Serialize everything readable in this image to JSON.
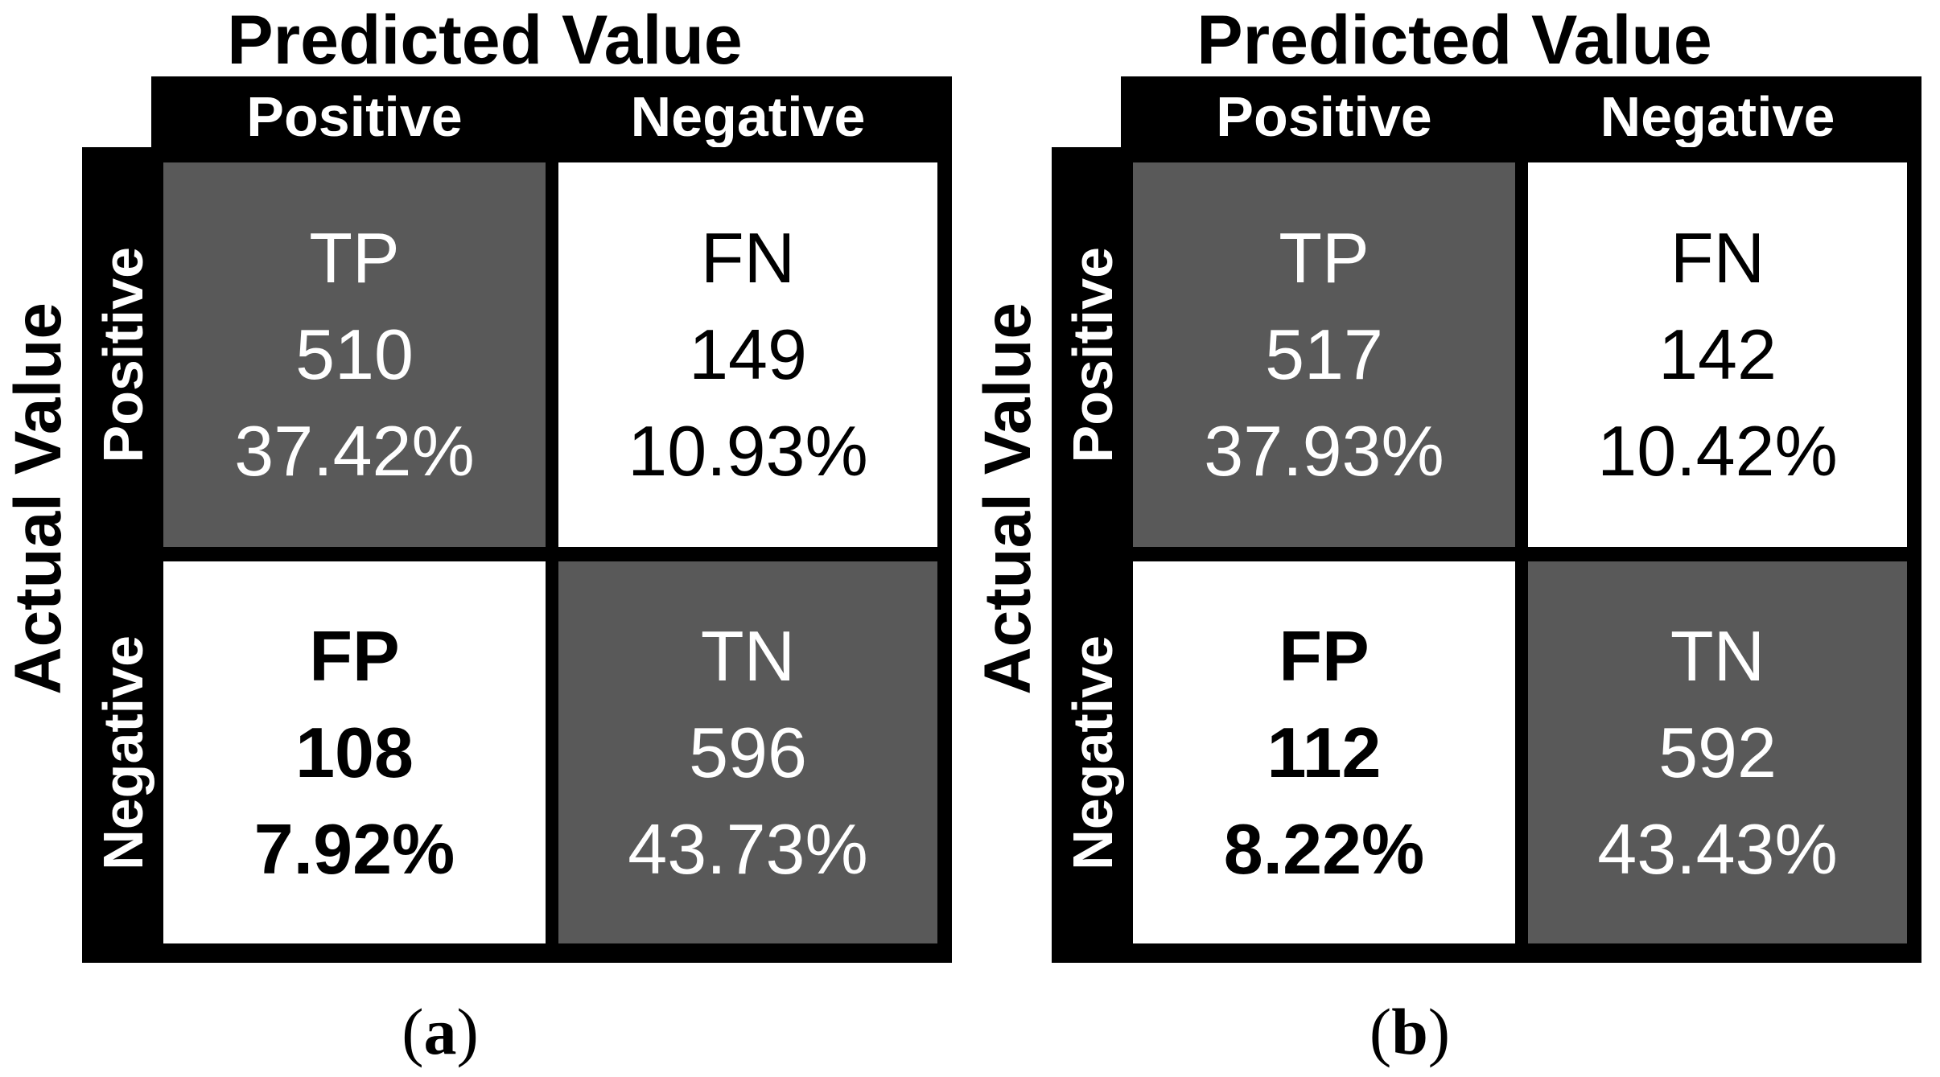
{
  "figure": {
    "colors": {
      "cell_gray": "#595959",
      "frame_black": "#000000"
    },
    "panels": [
      {
        "predicted_title": "Predicted Value",
        "actual_title": "Actual Value",
        "col_labels": [
          "Positive",
          "Negative"
        ],
        "row_labels": [
          "Positive",
          "Negative"
        ],
        "cells": [
          {
            "label": "TP",
            "count": "510",
            "percent": "37.42%"
          },
          {
            "label": "FN",
            "count": "149",
            "percent": "10.93%"
          },
          {
            "label": "FP",
            "count": "108",
            "percent": "7.92%"
          },
          {
            "label": "TN",
            "count": "596",
            "percent": "43.73%"
          }
        ],
        "caption_open": "(",
        "caption_letter": "a",
        "caption_close": ")"
      },
      {
        "predicted_title": "Predicted Value",
        "actual_title": "Actual Value",
        "col_labels": [
          "Positive",
          "Negative"
        ],
        "row_labels": [
          "Positive",
          "Negative"
        ],
        "cells": [
          {
            "label": "TP",
            "count": "517",
            "percent": "37.93%"
          },
          {
            "label": "FN",
            "count": "142",
            "percent": "10.42%"
          },
          {
            "label": "FP",
            "count": "112",
            "percent": "8.22%"
          },
          {
            "label": "TN",
            "count": "592",
            "percent": "43.43%"
          }
        ],
        "caption_open": "(",
        "caption_letter": "b",
        "caption_close": ")"
      }
    ]
  },
  "chart_data": [
    {
      "type": "heatmap",
      "panel": "(a)",
      "title": "Confusion matrix (a)",
      "xlabel": "Predicted Value",
      "ylabel": "Actual Value",
      "x_categories": [
        "Positive",
        "Negative"
      ],
      "y_categories": [
        "Positive",
        "Negative"
      ],
      "cells": [
        {
          "row": "Positive",
          "col": "Positive",
          "name": "TP",
          "count": 510,
          "percent": 37.42,
          "shaded": true
        },
        {
          "row": "Positive",
          "col": "Negative",
          "name": "FN",
          "count": 149,
          "percent": 10.93,
          "shaded": false
        },
        {
          "row": "Negative",
          "col": "Positive",
          "name": "FP",
          "count": 108,
          "percent": 7.92,
          "shaded": false
        },
        {
          "row": "Negative",
          "col": "Negative",
          "name": "TN",
          "count": 596,
          "percent": 43.73,
          "shaded": true
        }
      ]
    },
    {
      "type": "heatmap",
      "panel": "(b)",
      "title": "Confusion matrix (b)",
      "xlabel": "Predicted Value",
      "ylabel": "Actual Value",
      "x_categories": [
        "Positive",
        "Negative"
      ],
      "y_categories": [
        "Positive",
        "Negative"
      ],
      "cells": [
        {
          "row": "Positive",
          "col": "Positive",
          "name": "TP",
          "count": 517,
          "percent": 37.93,
          "shaded": true
        },
        {
          "row": "Positive",
          "col": "Negative",
          "name": "FN",
          "count": 142,
          "percent": 10.42,
          "shaded": false
        },
        {
          "row": "Negative",
          "col": "Positive",
          "name": "FP",
          "count": 112,
          "percent": 8.22,
          "shaded": false
        },
        {
          "row": "Negative",
          "col": "Negative",
          "name": "TN",
          "count": 592,
          "percent": 43.43,
          "shaded": true
        }
      ]
    }
  ]
}
